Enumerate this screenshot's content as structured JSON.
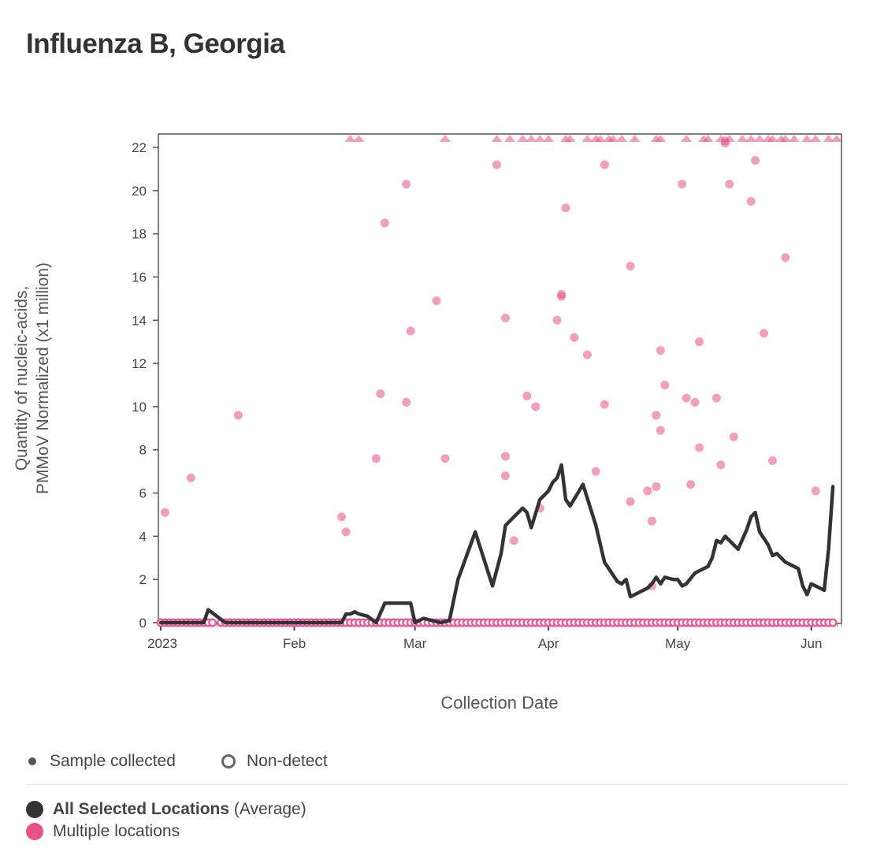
{
  "title": "Influenza B, Georgia",
  "colors": {
    "average": "#333333",
    "locations": "#e8508a",
    "axis": "#444444"
  },
  "legend": {
    "sample_collected": "Sample collected",
    "non_detect": "Non-detect",
    "average_name": "All Selected Locations",
    "average_suffix": " (Average)",
    "locations_name": "Multiple locations"
  },
  "chart_data": {
    "type": "scatter",
    "title": "Influenza B, Georgia",
    "xlabel": "Collection Date",
    "ylabel_lines": [
      "Quantity of nucleic-acids,",
      "PMMoV Normalized (x1 million)"
    ],
    "ylim": [
      0,
      22.5
    ],
    "yticks": [
      0,
      2,
      4,
      6,
      8,
      10,
      12,
      14,
      16,
      18,
      20,
      22
    ],
    "xlim_day": [
      0,
      158
    ],
    "xticks": [
      {
        "label": "2023",
        "day": 0
      },
      {
        "label": "Feb",
        "day": 31
      },
      {
        "label": "Mar",
        "day": 59
      },
      {
        "label": "Apr",
        "day": 90
      },
      {
        "label": "May",
        "day": 120
      },
      {
        "label": "Jun",
        "day": 151
      }
    ],
    "series": [
      {
        "name": "All Selected Locations (Average)",
        "kind": "line",
        "points": [
          [
            0,
            0
          ],
          [
            2,
            0
          ],
          [
            4,
            0
          ],
          [
            6,
            0
          ],
          [
            8,
            0
          ],
          [
            10,
            0
          ],
          [
            11,
            0.6
          ],
          [
            13,
            0.3
          ],
          [
            15,
            0
          ],
          [
            18,
            0
          ],
          [
            22,
            0
          ],
          [
            26,
            0
          ],
          [
            30,
            0
          ],
          [
            34,
            0
          ],
          [
            38,
            0
          ],
          [
            42,
            0
          ],
          [
            43,
            0.4
          ],
          [
            44,
            0.4
          ],
          [
            45,
            0.5
          ],
          [
            46,
            0.4
          ],
          [
            48,
            0.3
          ],
          [
            50,
            0
          ],
          [
            52,
            0.9
          ],
          [
            54,
            0.9
          ],
          [
            56,
            0.9
          ],
          [
            58,
            0.9
          ],
          [
            59,
            0
          ],
          [
            61,
            0.2
          ],
          [
            63,
            0.1
          ],
          [
            65,
            0
          ],
          [
            67,
            0.1
          ],
          [
            69,
            2
          ],
          [
            73,
            4.2
          ],
          [
            77,
            1.7
          ],
          [
            79,
            3.2
          ],
          [
            80,
            4.5
          ],
          [
            82,
            4.9
          ],
          [
            84,
            5.3
          ],
          [
            85,
            5.1
          ],
          [
            86,
            4.4
          ],
          [
            88,
            5.7
          ],
          [
            90,
            6.1
          ],
          [
            91,
            6.5
          ],
          [
            92,
            6.7
          ],
          [
            93,
            7.3
          ],
          [
            94,
            5.7
          ],
          [
            95,
            5.4
          ],
          [
            98,
            6.4
          ],
          [
            101,
            4.5
          ],
          [
            103,
            2.8
          ],
          [
            106,
            1.9
          ],
          [
            107,
            1.8
          ],
          [
            108,
            2.0
          ],
          [
            109,
            1.2
          ],
          [
            112,
            1.5
          ],
          [
            113,
            1.6
          ],
          [
            114,
            1.8
          ],
          [
            115,
            2.1
          ],
          [
            116,
            1.8
          ],
          [
            117,
            2.1
          ],
          [
            119,
            2.0
          ],
          [
            120,
            2.0
          ],
          [
            121,
            1.7
          ],
          [
            122,
            1.8
          ],
          [
            124,
            2.3
          ],
          [
            127,
            2.6
          ],
          [
            128,
            3.0
          ],
          [
            129,
            3.8
          ],
          [
            130,
            3.7
          ],
          [
            131,
            4.0
          ],
          [
            134,
            3.4
          ],
          [
            136,
            4.3
          ],
          [
            137,
            4.9
          ],
          [
            138,
            5.1
          ],
          [
            139,
            4.2
          ],
          [
            141,
            3.6
          ],
          [
            142,
            3.1
          ],
          [
            143,
            3.2
          ],
          [
            145,
            2.8
          ],
          [
            148,
            2.5
          ],
          [
            149,
            1.7
          ],
          [
            150,
            1.3
          ],
          [
            151,
            1.8
          ],
          [
            154,
            1.5
          ],
          [
            155,
            3.4
          ],
          [
            156,
            6.3
          ]
        ]
      },
      {
        "name": "Multiple locations",
        "kind": "scatter",
        "points": [
          [
            1,
            5.1
          ],
          [
            7,
            6.7
          ],
          [
            18,
            9.6
          ],
          [
            42,
            4.9
          ],
          [
            43,
            4.2
          ],
          [
            50,
            7.6
          ],
          [
            51,
            10.6
          ],
          [
            52,
            18.5
          ],
          [
            57,
            20.3
          ],
          [
            57,
            10.2
          ],
          [
            58,
            13.5
          ],
          [
            64,
            14.9
          ],
          [
            66,
            7.6
          ],
          [
            78,
            21.2
          ],
          [
            80,
            14.1
          ],
          [
            80,
            7.7
          ],
          [
            80,
            6.8
          ],
          [
            82,
            3.8
          ],
          [
            85,
            10.5
          ],
          [
            87,
            10.0
          ],
          [
            88,
            5.3
          ],
          [
            92,
            14.0
          ],
          [
            93,
            15.2
          ],
          [
            93,
            15.1
          ],
          [
            94,
            19.2
          ],
          [
            96,
            13.2
          ],
          [
            99,
            12.4
          ],
          [
            101,
            7.0
          ],
          [
            103,
            21.2
          ],
          [
            103,
            10.1
          ],
          [
            109,
            16.5
          ],
          [
            109,
            5.6
          ],
          [
            113,
            6.1
          ],
          [
            114,
            4.7
          ],
          [
            114,
            1.7
          ],
          [
            115,
            9.6
          ],
          [
            115,
            6.3
          ],
          [
            116,
            12.6
          ],
          [
            116,
            8.9
          ],
          [
            117,
            11.0
          ],
          [
            121,
            20.3
          ],
          [
            122,
            10.4
          ],
          [
            123,
            6.4
          ],
          [
            124,
            10.2
          ],
          [
            125,
            13.0
          ],
          [
            125,
            8.1
          ],
          [
            129,
            10.4
          ],
          [
            130,
            7.3
          ],
          [
            131,
            22.3
          ],
          [
            131,
            22.2
          ],
          [
            132,
            20.3
          ],
          [
            133,
            8.6
          ],
          [
            137,
            19.5
          ],
          [
            138,
            21.4
          ],
          [
            140,
            13.4
          ],
          [
            142,
            7.5
          ],
          [
            145,
            16.9
          ],
          [
            152,
            6.1
          ]
        ]
      },
      {
        "name": "Above range",
        "kind": "clipped",
        "days": [
          44,
          46,
          66,
          78,
          81,
          84,
          86,
          88,
          90,
          94,
          95,
          99,
          101,
          102,
          104,
          105,
          107,
          110,
          115,
          116,
          122,
          126,
          127,
          130,
          132,
          135,
          137,
          139,
          141,
          142,
          144,
          145,
          147,
          150,
          152,
          155,
          159
        ]
      },
      {
        "name": "Non-detect",
        "kind": "non-detect",
        "days": [
          0,
          1,
          2,
          3,
          4,
          5,
          6,
          7,
          8,
          9,
          10,
          11,
          12,
          14,
          15,
          16,
          17,
          18,
          19,
          20,
          21,
          22,
          23,
          24,
          25,
          26,
          27,
          28,
          29,
          30,
          31,
          32,
          33,
          34,
          35,
          36,
          37,
          38,
          39,
          40,
          41,
          42,
          43,
          44,
          45,
          46,
          47,
          48,
          49,
          50,
          51,
          52,
          53,
          54,
          55,
          56,
          57,
          58,
          59,
          60,
          61,
          62,
          63,
          64,
          65,
          66,
          67,
          68,
          69,
          70,
          71,
          72,
          73,
          74,
          75,
          76,
          77,
          78,
          79,
          80,
          81,
          82,
          83,
          84,
          85,
          86,
          87,
          88,
          89,
          90,
          91,
          92,
          93,
          94,
          95,
          96,
          97,
          98,
          99,
          100,
          101,
          102,
          103,
          104,
          105,
          106,
          107,
          108,
          109,
          110,
          111,
          112,
          113,
          114,
          115,
          116,
          117,
          118,
          119,
          120,
          121,
          122,
          123,
          124,
          125,
          126,
          127,
          128,
          129,
          130,
          131,
          132,
          133,
          134,
          135,
          136,
          137,
          138,
          139,
          140,
          141,
          142,
          143,
          144,
          145,
          146,
          147,
          148,
          149,
          150,
          151,
          152,
          153,
          154,
          155,
          156
        ]
      }
    ]
  }
}
